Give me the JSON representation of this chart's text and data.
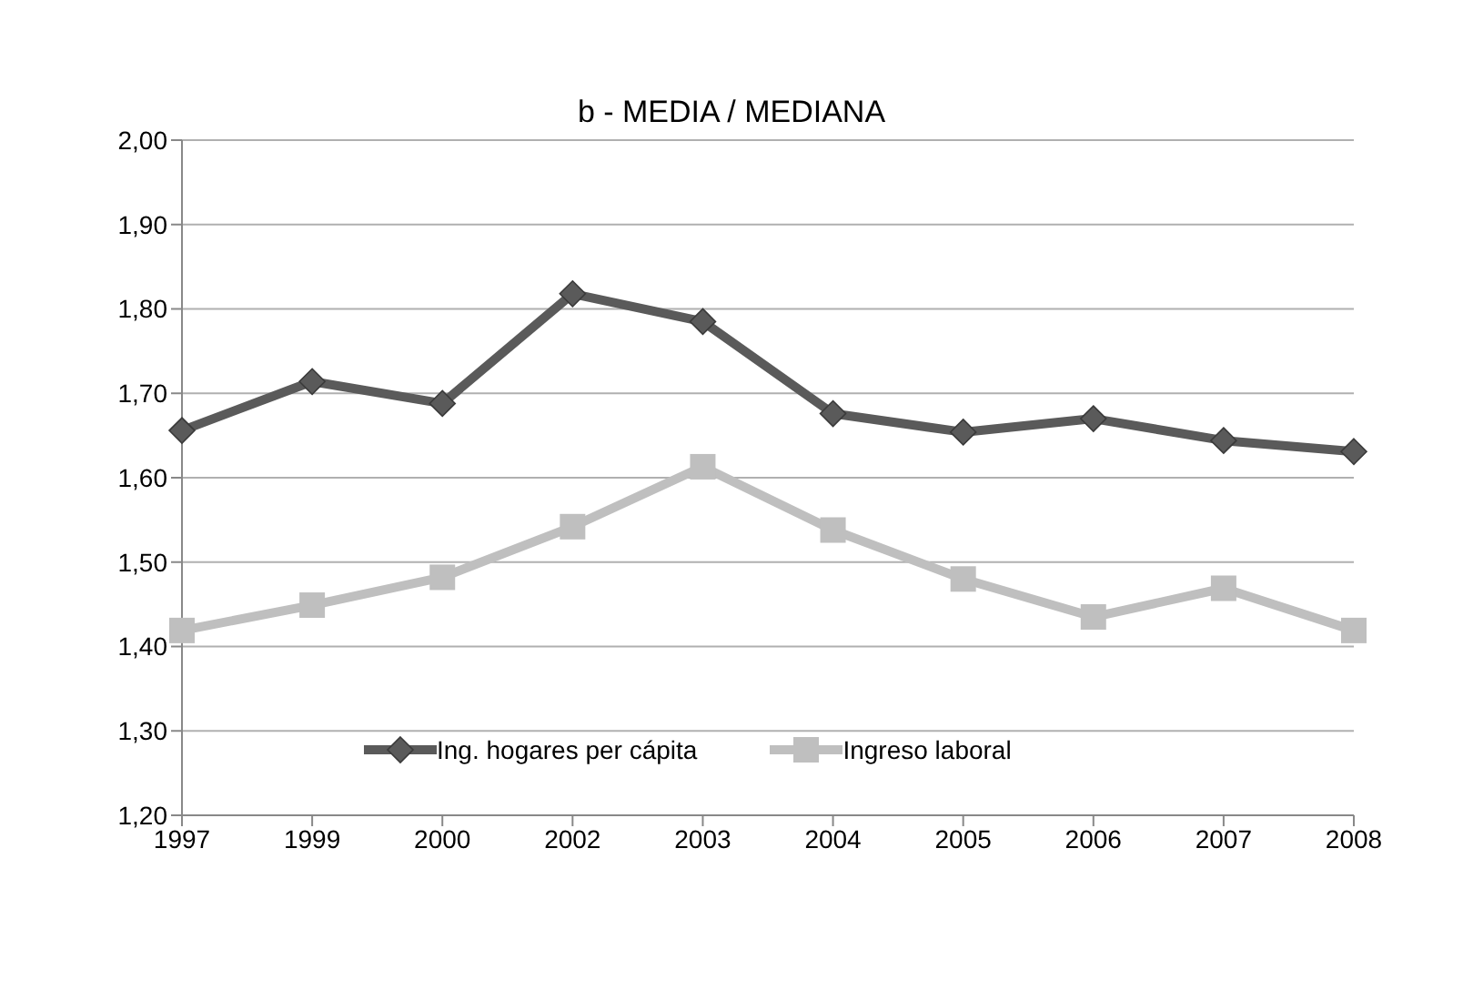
{
  "chart_data": {
    "type": "line",
    "title": "b -  MEDIA / MEDIANA",
    "categories": [
      "1997",
      "1999",
      "2000",
      "2002",
      "2003",
      "2004",
      "2005",
      "2006",
      "2007",
      "2008"
    ],
    "series": [
      {
        "name": "Ing. hogares per cápita",
        "color": "#5a5a5a",
        "marker": "diamond",
        "values": [
          1.656,
          1.714,
          1.688,
          1.818,
          1.785,
          1.676,
          1.654,
          1.67,
          1.644,
          1.631
        ]
      },
      {
        "name": "Ingreso laboral",
        "color": "#bfbfbf",
        "marker": "square",
        "values": [
          1.419,
          1.449,
          1.482,
          1.542,
          1.613,
          1.538,
          1.48,
          1.435,
          1.469,
          1.419
        ]
      }
    ],
    "ylim": [
      1.2,
      2.0
    ],
    "yticks": [
      {
        "value": 1.2,
        "label": "1,20"
      },
      {
        "value": 1.3,
        "label": "1,30"
      },
      {
        "value": 1.4,
        "label": "1,40"
      },
      {
        "value": 1.5,
        "label": "1,50"
      },
      {
        "value": 1.6,
        "label": "1,60"
      },
      {
        "value": 1.7,
        "label": "1,70"
      },
      {
        "value": 1.8,
        "label": "1,80"
      },
      {
        "value": 1.9,
        "label": "1,90"
      },
      {
        "value": 2.0,
        "label": "2,00"
      }
    ],
    "grid": "y",
    "legend": "bottom",
    "line_style": "solid"
  }
}
